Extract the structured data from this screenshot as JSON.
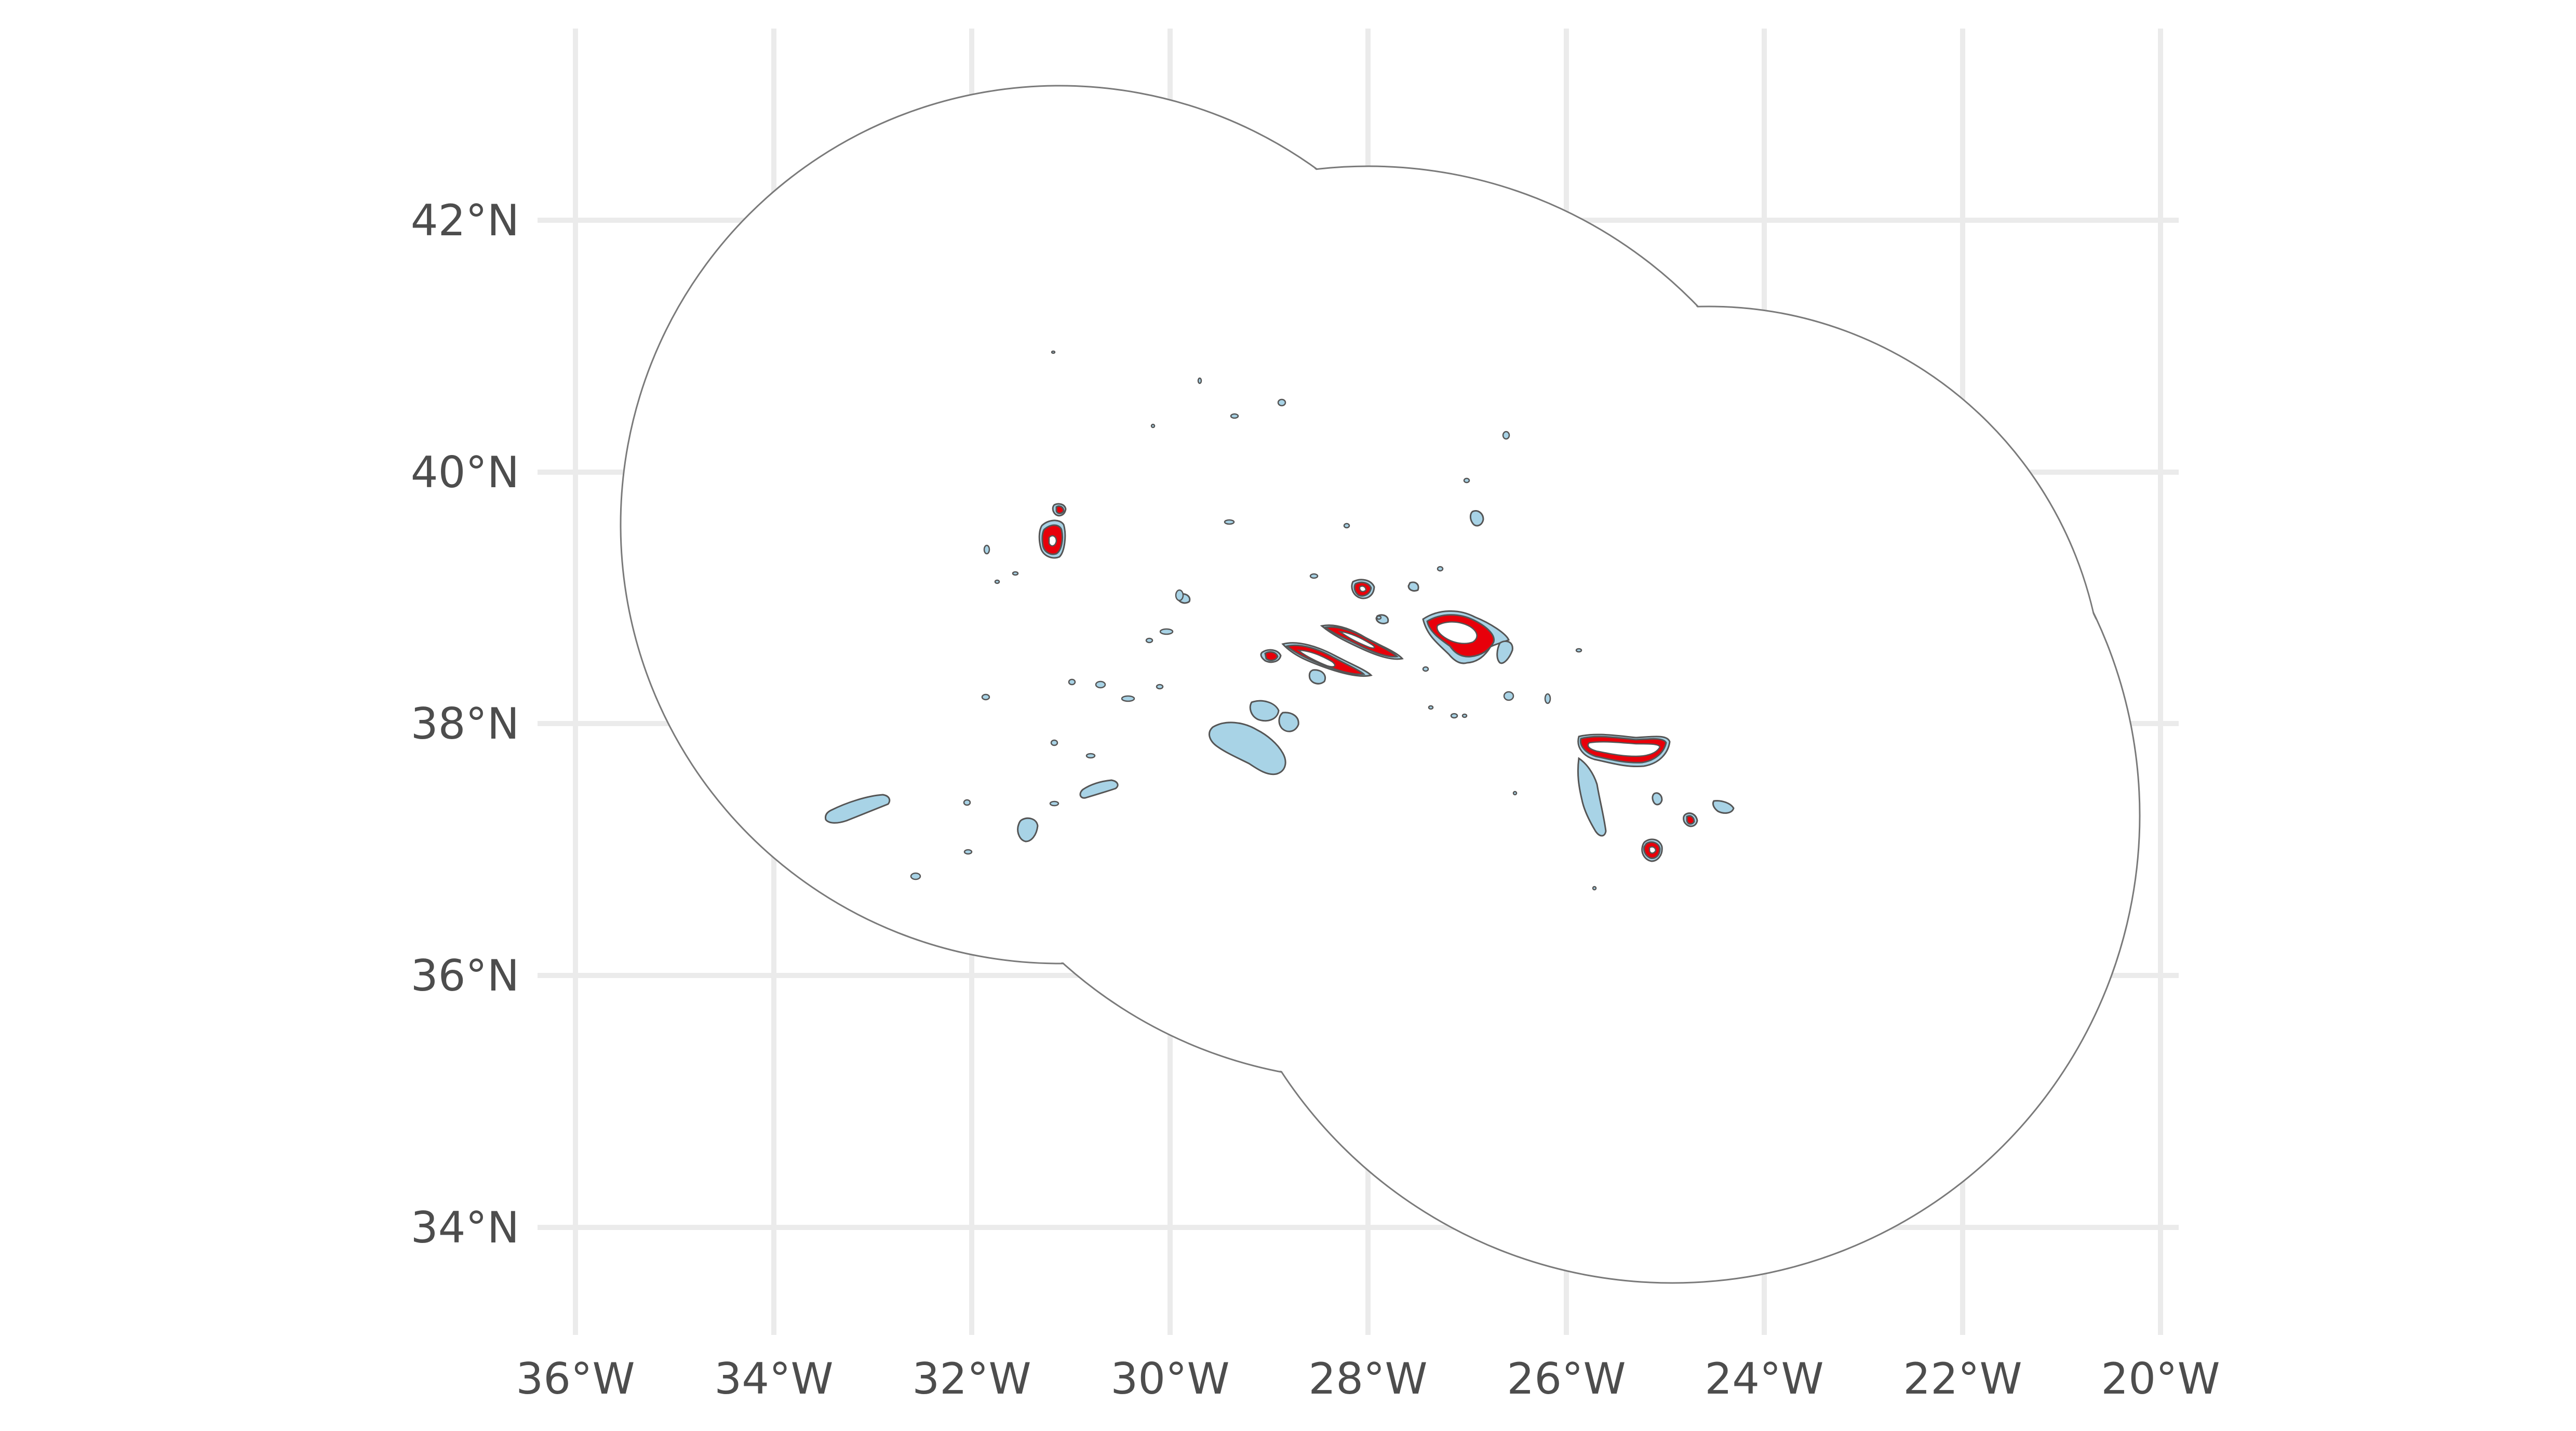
{
  "map": {
    "x_axis": {
      "ticks": [
        "36°W",
        "34°W",
        "32°W",
        "30°W",
        "28°W",
        "26°W",
        "24°W",
        "22°W",
        "20°W"
      ]
    },
    "y_axis": {
      "ticks": [
        "42°N",
        "40°N",
        "38°N",
        "36°N",
        "34°N"
      ]
    },
    "colors": {
      "land": "#a8d3e6",
      "highlight": "#e8000a",
      "buffer": "#ffffff",
      "grid": "#ebebeb",
      "outline": "#555555"
    },
    "layers": [
      "buffer-zone",
      "islands",
      "highlighted-areas"
    ]
  }
}
